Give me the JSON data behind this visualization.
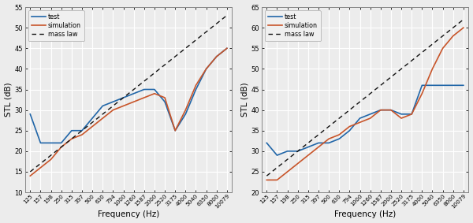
{
  "left": {
    "x_labels": [
      "125",
      "157",
      "198",
      "250",
      "315",
      "397",
      "500",
      "630",
      "794",
      "1000",
      "1260",
      "1587",
      "2000",
      "2520",
      "3175",
      "4000",
      "5040",
      "6350",
      "8000",
      "10079"
    ],
    "x_vals": [
      125,
      157,
      198,
      250,
      315,
      397,
      500,
      630,
      794,
      1000,
      1260,
      1587,
      2000,
      2520,
      3175,
      4000,
      5040,
      6350,
      8000,
      10079
    ],
    "test": [
      29,
      22,
      22,
      22,
      25,
      25,
      28,
      31,
      32,
      33,
      34,
      35,
      35,
      32,
      25,
      29,
      35,
      40,
      43,
      45
    ],
    "simulation": [
      14,
      16,
      18,
      21,
      23,
      24,
      26,
      28,
      30,
      31,
      32,
      33,
      34,
      33,
      25,
      30,
      36,
      40,
      43,
      45
    ],
    "mass_law": [
      15,
      17,
      19,
      21,
      23,
      25,
      27,
      29,
      31,
      33,
      35,
      37,
      39,
      41,
      43,
      45,
      47,
      49,
      51,
      53
    ],
    "ylabel": "STL (dB)",
    "xlabel": "Frequency (Hz)",
    "ylim": [
      10,
      55
    ],
    "yticks": [
      10,
      15,
      20,
      25,
      30,
      35,
      40,
      45,
      50,
      55
    ]
  },
  "right": {
    "x_labels": [
      "125",
      "157",
      "198",
      "250",
      "315",
      "397",
      "500",
      "630",
      "794",
      "1000",
      "1260",
      "1587",
      "2000",
      "2520",
      "3175",
      "4000",
      "5040",
      "6350",
      "8000",
      "10079"
    ],
    "x_vals": [
      125,
      157,
      198,
      250,
      315,
      397,
      500,
      630,
      794,
      1000,
      1260,
      1587,
      2000,
      2520,
      3175,
      4000,
      5040,
      6350,
      8000,
      10079
    ],
    "test": [
      32,
      29,
      30,
      30,
      31,
      32,
      32,
      33,
      35,
      38,
      39,
      40,
      40,
      39,
      39,
      46,
      46,
      46,
      46,
      46
    ],
    "simulation": [
      23,
      23,
      25,
      27,
      29,
      31,
      33,
      34,
      36,
      37,
      38,
      40,
      40,
      38,
      39,
      44,
      50,
      55,
      58,
      60
    ],
    "mass_law": [
      24,
      26,
      28,
      30,
      32,
      34,
      36,
      38,
      40,
      42,
      44,
      46,
      48,
      50,
      52,
      54,
      56,
      58,
      60,
      62
    ],
    "ylabel": "STL (dB)",
    "xlabel": "Frequency (Hz)",
    "ylim": [
      20,
      65
    ],
    "yticks": [
      20,
      25,
      30,
      35,
      40,
      45,
      50,
      55,
      60,
      65
    ]
  },
  "legend_labels": [
    "test",
    "simulation",
    "mass law"
  ],
  "test_color": "#2166a8",
  "simulation_color": "#c8552a",
  "mass_law_color": "#111111",
  "background_color": "#ececec",
  "grid_color": "#ffffff",
  "spine_color": "#888888"
}
